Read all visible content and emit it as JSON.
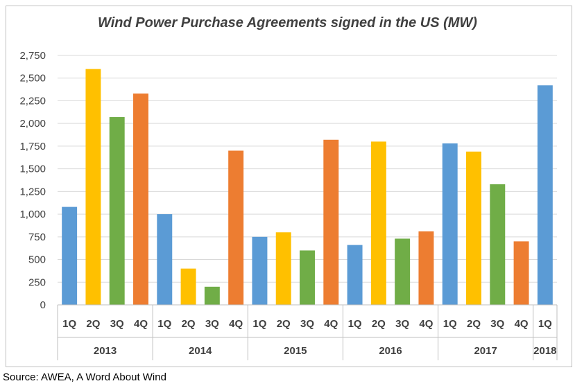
{
  "chart_data": {
    "type": "bar",
    "title": "Wind Power Purchase Agreements signed in the US (MW)",
    "xlabel": "",
    "ylabel": "",
    "ylim": [
      0,
      2750
    ],
    "yticks": [
      0,
      250,
      500,
      750,
      1000,
      1250,
      1500,
      1750,
      2000,
      2250,
      2500,
      2750
    ],
    "ytick_labels": [
      "0",
      "250",
      "500",
      "750",
      "1,000",
      "1,250",
      "1,500",
      "1,750",
      "2,000",
      "2,250",
      "2,500",
      "2,750"
    ],
    "grid": "horizontal",
    "legend": "none",
    "groups": [
      {
        "year": "2013",
        "quarters": [
          "1Q",
          "2Q",
          "3Q",
          "4Q"
        ],
        "values": [
          1080,
          2600,
          2070,
          2330
        ]
      },
      {
        "year": "2014",
        "quarters": [
          "1Q",
          "2Q",
          "3Q",
          "4Q"
        ],
        "values": [
          1000,
          400,
          200,
          1700
        ]
      },
      {
        "year": "2015",
        "quarters": [
          "1Q",
          "2Q",
          "3Q",
          "4Q"
        ],
        "values": [
          750,
          800,
          600,
          1820
        ]
      },
      {
        "year": "2016",
        "quarters": [
          "1Q",
          "2Q",
          "3Q",
          "4Q"
        ],
        "values": [
          660,
          1800,
          730,
          810
        ]
      },
      {
        "year": "2017",
        "quarters": [
          "1Q",
          "2Q",
          "3Q",
          "4Q"
        ],
        "values": [
          1780,
          1690,
          1330,
          700
        ]
      },
      {
        "year": "2018",
        "quarters": [
          "1Q"
        ],
        "values": [
          2420
        ]
      }
    ],
    "quarter_colors": {
      "1Q": "#5b9bd5",
      "2Q": "#ffc000",
      "3Q": "#70ad47",
      "4Q": "#ed7d31"
    }
  },
  "source": "Source: AWEA, A Word About Wind"
}
